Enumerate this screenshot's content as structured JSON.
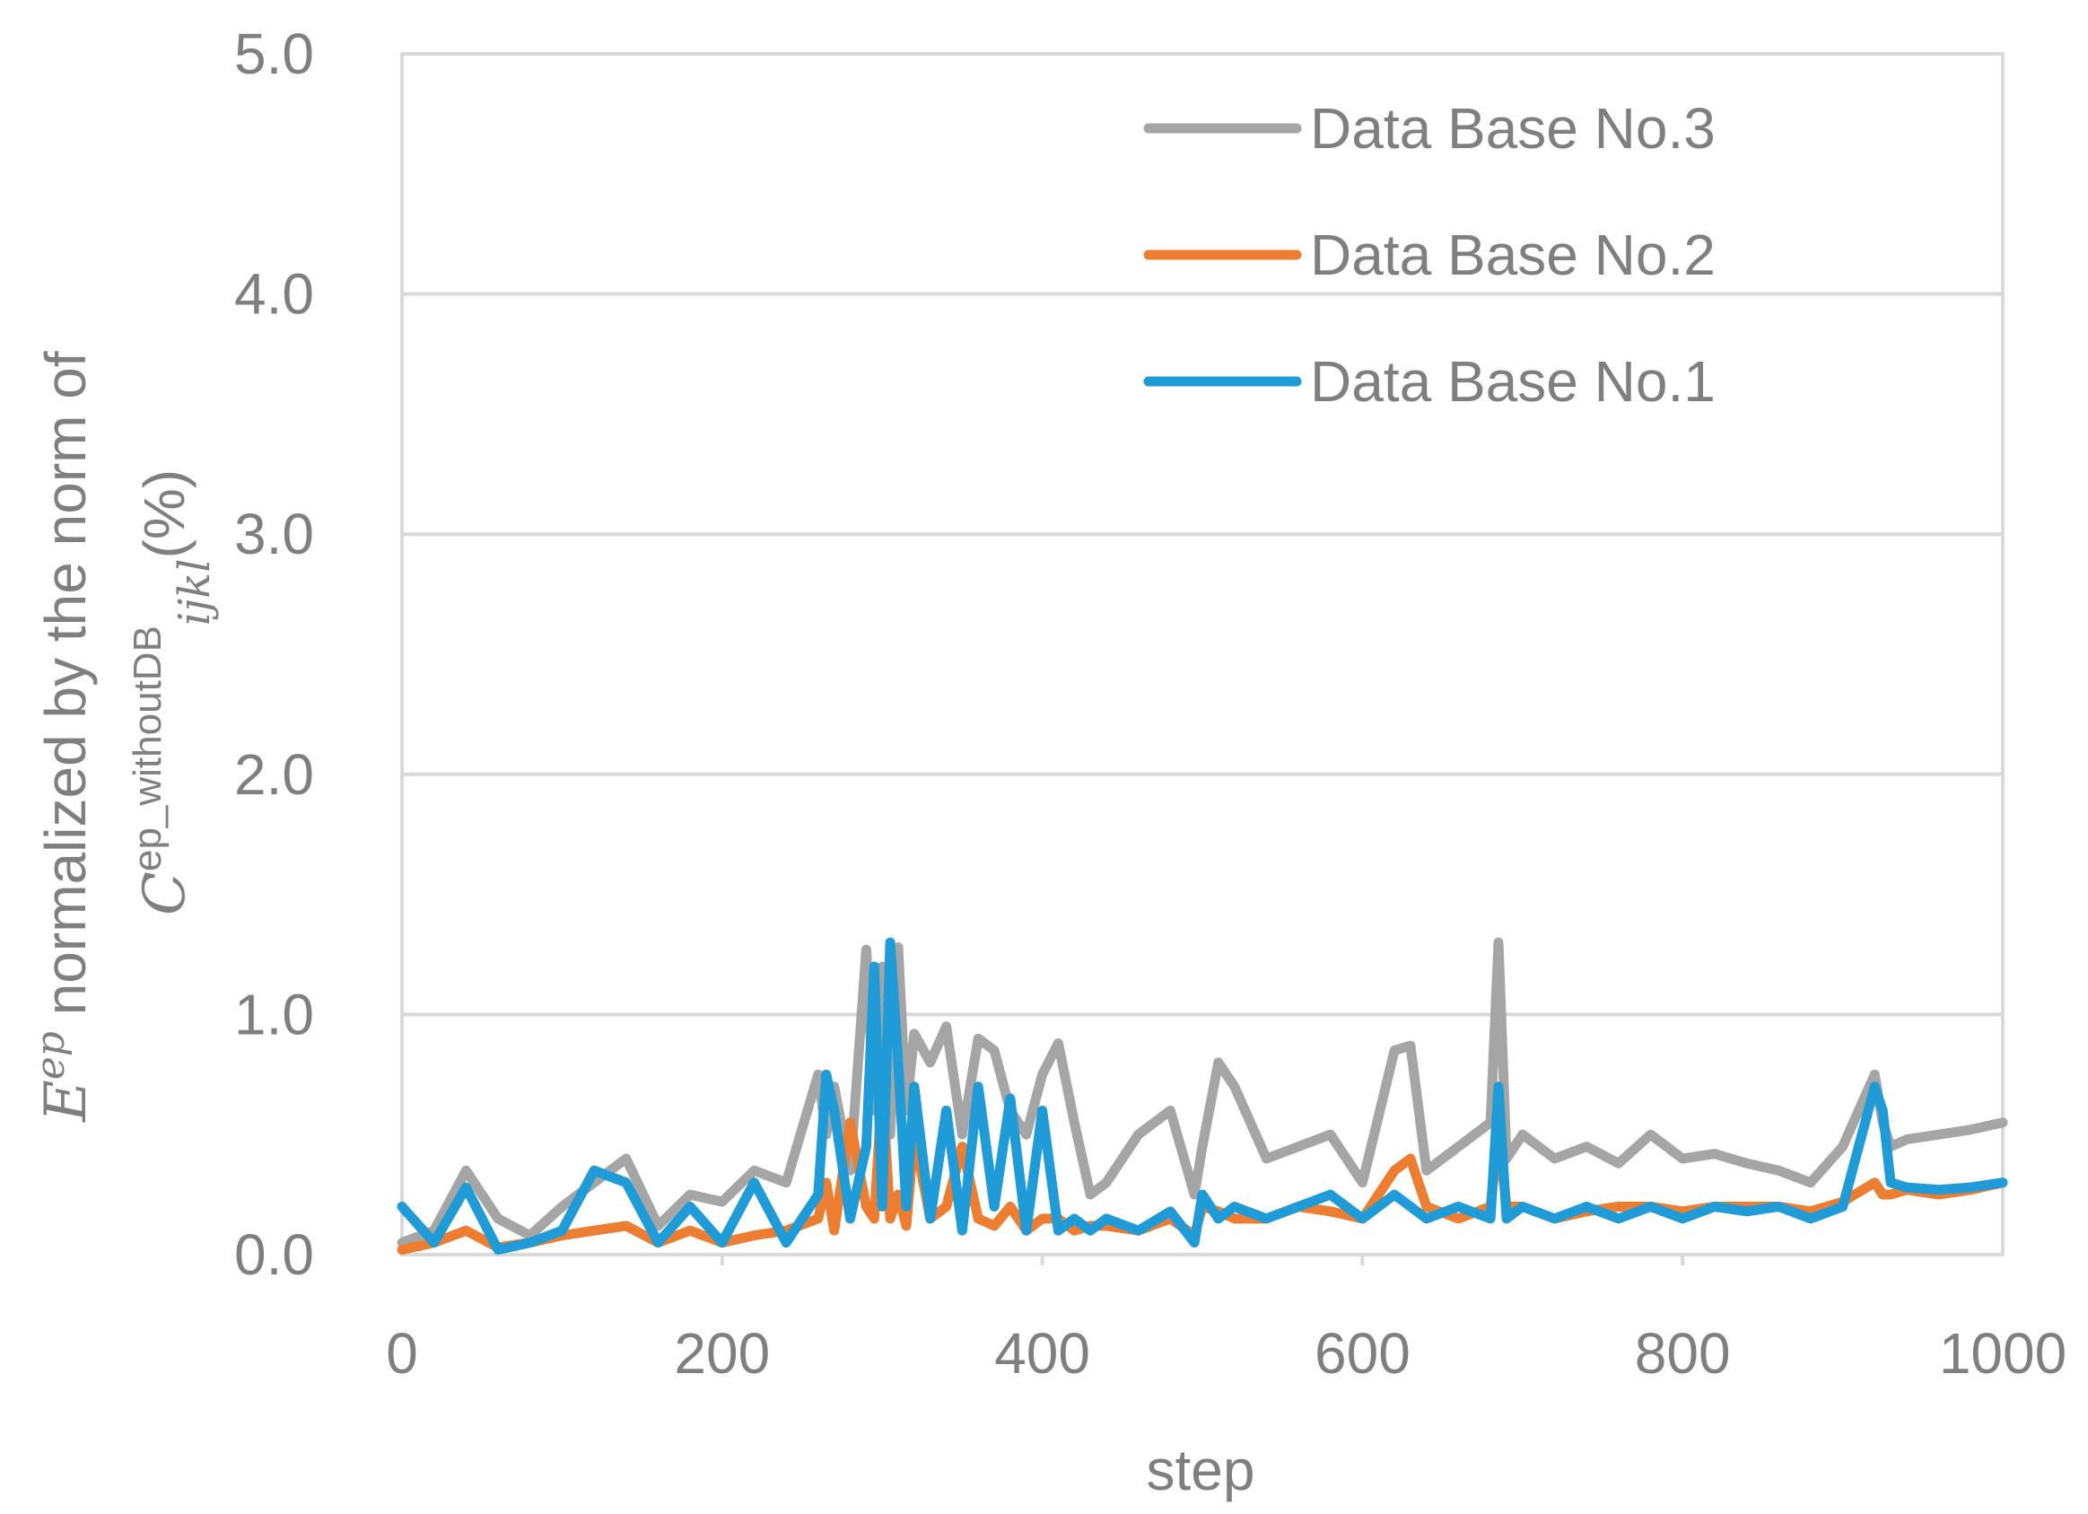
{
  "chart_data": {
    "type": "line",
    "title": "",
    "xlabel": "step",
    "ylabel": {
      "e_symbol": "E",
      "e_sup": "ep",
      "line1": " normalized by the norm of",
      "c_symbol": "C",
      "c_sup": "ep_withoutDB",
      "c_sub": "ijkl",
      "unit": "(%)"
    },
    "xlim": [
      0,
      1000
    ],
    "ylim": [
      0,
      5
    ],
    "xticks": [
      0,
      200,
      400,
      600,
      800,
      1000
    ],
    "xtick_labels": [
      "0",
      "200",
      "400",
      "600",
      "800",
      "1000"
    ],
    "yticks": [
      0,
      1,
      2,
      3,
      4,
      5
    ],
    "ytick_labels": [
      "0.0",
      "1.0",
      "2.0",
      "3.0",
      "4.0",
      "5.0"
    ],
    "grid": "horizontal",
    "legend_position": "top-right",
    "x": [
      0,
      20,
      40,
      60,
      80,
      100,
      120,
      140,
      160,
      180,
      200,
      220,
      240,
      260,
      265,
      270,
      280,
      290,
      295,
      300,
      305,
      310,
      315,
      320,
      330,
      340,
      350,
      360,
      370,
      380,
      390,
      400,
      410,
      420,
      430,
      440,
      460,
      480,
      495,
      500,
      510,
      520,
      540,
      560,
      580,
      600,
      620,
      630,
      640,
      660,
      680,
      685,
      690,
      700,
      720,
      740,
      760,
      780,
      800,
      820,
      840,
      860,
      880,
      900,
      920,
      925,
      930,
      940,
      960,
      980,
      1000
    ],
    "series": [
      {
        "name": "Data Base No.3",
        "color": "#a5a5a5",
        "values": [
          0.05,
          0.1,
          0.35,
          0.15,
          0.08,
          0.2,
          0.3,
          0.4,
          0.12,
          0.25,
          0.22,
          0.35,
          0.3,
          0.75,
          0.5,
          0.7,
          0.35,
          1.27,
          0.6,
          1.2,
          0.5,
          1.28,
          0.6,
          0.92,
          0.8,
          0.95,
          0.5,
          0.9,
          0.85,
          0.6,
          0.5,
          0.75,
          0.88,
          0.55,
          0.25,
          0.3,
          0.5,
          0.6,
          0.25,
          0.45,
          0.8,
          0.7,
          0.4,
          0.45,
          0.5,
          0.3,
          0.85,
          0.87,
          0.35,
          0.45,
          0.55,
          1.3,
          0.4,
          0.5,
          0.4,
          0.45,
          0.38,
          0.5,
          0.4,
          0.42,
          0.38,
          0.35,
          0.3,
          0.45,
          0.75,
          0.55,
          0.45,
          0.48,
          0.5,
          0.52,
          0.55
        ]
      },
      {
        "name": "Data Base No.2",
        "color": "#ed7d31",
        "values": [
          0.02,
          0.05,
          0.1,
          0.03,
          0.05,
          0.08,
          0.1,
          0.12,
          0.05,
          0.1,
          0.05,
          0.08,
          0.1,
          0.15,
          0.3,
          0.1,
          0.55,
          0.2,
          0.15,
          0.7,
          0.15,
          0.25,
          0.12,
          0.5,
          0.15,
          0.2,
          0.45,
          0.15,
          0.12,
          0.2,
          0.1,
          0.15,
          0.15,
          0.1,
          0.12,
          0.12,
          0.1,
          0.15,
          0.08,
          0.2,
          0.18,
          0.15,
          0.15,
          0.2,
          0.18,
          0.15,
          0.35,
          0.4,
          0.2,
          0.15,
          0.2,
          0.5,
          0.2,
          0.2,
          0.15,
          0.18,
          0.2,
          0.2,
          0.18,
          0.2,
          0.2,
          0.2,
          0.18,
          0.22,
          0.3,
          0.25,
          0.25,
          0.27,
          0.25,
          0.27,
          0.3
        ]
      },
      {
        "name": "Data Base No.1",
        "color": "#1f9bd7",
        "values": [
          0.2,
          0.05,
          0.28,
          0.02,
          0.05,
          0.1,
          0.35,
          0.3,
          0.05,
          0.2,
          0.05,
          0.3,
          0.05,
          0.25,
          0.75,
          0.6,
          0.15,
          0.45,
          1.2,
          0.2,
          1.3,
          0.8,
          0.2,
          0.7,
          0.15,
          0.6,
          0.1,
          0.7,
          0.2,
          0.65,
          0.1,
          0.6,
          0.1,
          0.15,
          0.1,
          0.15,
          0.1,
          0.18,
          0.05,
          0.25,
          0.15,
          0.2,
          0.15,
          0.2,
          0.25,
          0.15,
          0.25,
          0.2,
          0.15,
          0.2,
          0.15,
          0.7,
          0.15,
          0.2,
          0.15,
          0.2,
          0.15,
          0.2,
          0.15,
          0.2,
          0.18,
          0.2,
          0.15,
          0.2,
          0.7,
          0.6,
          0.3,
          0.28,
          0.27,
          0.28,
          0.3
        ]
      }
    ]
  }
}
